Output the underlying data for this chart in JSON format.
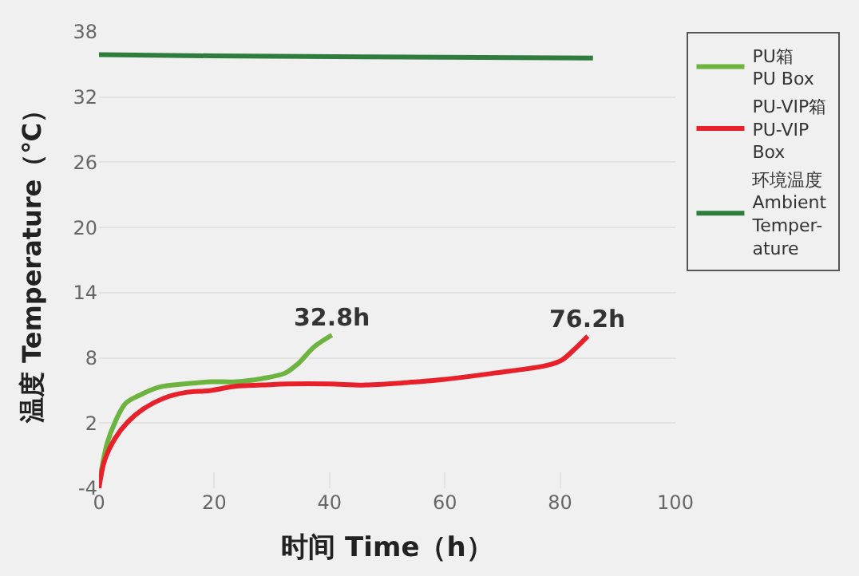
{
  "chart_data": {
    "type": "line",
    "xlabel": "时间 Time（h）",
    "ylabel": "温度 Temperature（℃）",
    "xlim": [
      0,
      100
    ],
    "xticks": [
      0,
      20,
      40,
      60,
      80,
      100
    ],
    "ylim": [
      -4,
      38
    ],
    "yticks": [
      -4,
      2,
      8,
      14,
      20,
      26,
      32,
      38
    ],
    "grid": "y",
    "legend": "right",
    "marker": "none",
    "line_style": "solid",
    "series": [
      {
        "name": "PU箱\nPU Box",
        "color": "#6db33f",
        "x": [
          0,
          1.4,
          2.8,
          4.6,
          6.8,
          10.4,
          14.9,
          19.4,
          23.8,
          28.3,
          32.3,
          34.6,
          37.3,
          40.4
        ],
        "values": [
          -3.7,
          0.1,
          2.1,
          3.8,
          4.5,
          5.3,
          5.6,
          5.8,
          5.8,
          6.1,
          6.6,
          7.5,
          9.0,
          10.1
        ]
      },
      {
        "name": "PU-VIP箱\nPU-VIP\nBox",
        "color": "#e8202a",
        "x": [
          0,
          1,
          2.8,
          5,
          7.7,
          11.3,
          14.9,
          19.4,
          23.8,
          28.3,
          32.8,
          40,
          46.2,
          55.2,
          59.7,
          68.6,
          77.6,
          80.3,
          82.5,
          84.8
        ],
        "values": [
          -4,
          -1.4,
          0.6,
          2.1,
          3.3,
          4.3,
          4.8,
          5.0,
          5.4,
          5.5,
          5.6,
          5.6,
          5.5,
          5.8,
          6.0,
          6.6,
          7.3,
          7.8,
          8.8,
          10.0
        ]
      },
      {
        "name": "环境温度\nAmbient\nTemper-\nature",
        "color": "#2e7d3e",
        "x": [
          0,
          19.4,
          46.2,
          85.7
        ],
        "values": [
          35.9,
          35.8,
          35.7,
          35.6
        ]
      }
    ],
    "annotations": [
      "32.8h",
      "76.2h"
    ]
  }
}
